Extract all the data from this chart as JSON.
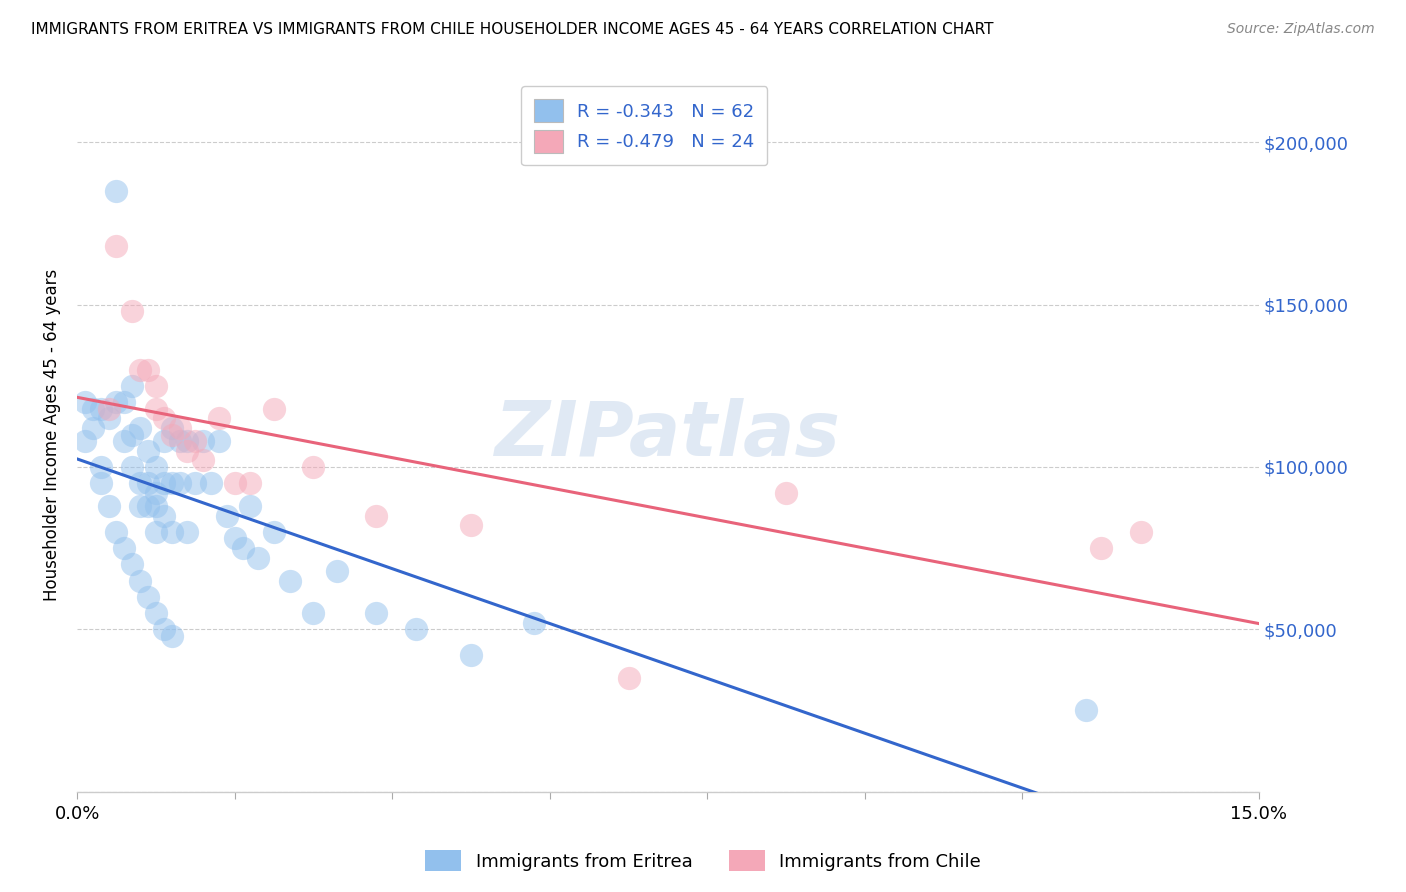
{
  "title": "IMMIGRANTS FROM ERITREA VS IMMIGRANTS FROM CHILE HOUSEHOLDER INCOME AGES 45 - 64 YEARS CORRELATION CHART",
  "source": "Source: ZipAtlas.com",
  "ylabel": "Householder Income Ages 45 - 64 years",
  "xmin": 0.0,
  "xmax": 0.15,
  "ymin": 0,
  "ymax": 220000,
  "yticks": [
    0,
    50000,
    100000,
    150000,
    200000
  ],
  "ytick_labels": [
    "",
    "$50,000",
    "$100,000",
    "$150,000",
    "$200,000"
  ],
  "legend_r1": "-0.343",
  "legend_n1": "62",
  "legend_r2": "-0.479",
  "legend_n2": "24",
  "legend_label1": "Immigrants from Eritrea",
  "legend_label2": "Immigrants from Chile",
  "watermark": "ZIPatlas",
  "color_eritrea": "#92C0ED",
  "color_chile": "#F4A8B8",
  "color_eritrea_line": "#3366CC",
  "color_chile_line": "#E8637A",
  "color_legend_text": "#3366CC",
  "eritrea_x": [
    0.001,
    0.002,
    0.003,
    0.004,
    0.005,
    0.005,
    0.006,
    0.006,
    0.007,
    0.007,
    0.007,
    0.008,
    0.008,
    0.008,
    0.009,
    0.009,
    0.009,
    0.01,
    0.01,
    0.01,
    0.01,
    0.011,
    0.011,
    0.011,
    0.012,
    0.012,
    0.012,
    0.013,
    0.013,
    0.014,
    0.014,
    0.015,
    0.016,
    0.017,
    0.018,
    0.019,
    0.02,
    0.021,
    0.022,
    0.023,
    0.025,
    0.027,
    0.03,
    0.033,
    0.038,
    0.043,
    0.05,
    0.058,
    0.001,
    0.002,
    0.003,
    0.003,
    0.004,
    0.005,
    0.006,
    0.007,
    0.008,
    0.009,
    0.01,
    0.011,
    0.012,
    0.128
  ],
  "eritrea_y": [
    108000,
    112000,
    118000,
    115000,
    185000,
    120000,
    120000,
    108000,
    125000,
    110000,
    100000,
    95000,
    112000,
    88000,
    105000,
    95000,
    88000,
    100000,
    92000,
    88000,
    80000,
    108000,
    95000,
    85000,
    112000,
    95000,
    80000,
    108000,
    95000,
    108000,
    80000,
    95000,
    108000,
    95000,
    108000,
    85000,
    78000,
    75000,
    88000,
    72000,
    80000,
    65000,
    55000,
    68000,
    55000,
    50000,
    42000,
    52000,
    120000,
    118000,
    100000,
    95000,
    88000,
    80000,
    75000,
    70000,
    65000,
    60000,
    55000,
    50000,
    48000,
    25000
  ],
  "chile_x": [
    0.004,
    0.005,
    0.007,
    0.008,
    0.009,
    0.01,
    0.01,
    0.011,
    0.012,
    0.013,
    0.014,
    0.015,
    0.016,
    0.018,
    0.02,
    0.022,
    0.025,
    0.03,
    0.038,
    0.05,
    0.07,
    0.09,
    0.13,
    0.135
  ],
  "chile_y": [
    118000,
    168000,
    148000,
    130000,
    130000,
    125000,
    118000,
    115000,
    110000,
    112000,
    105000,
    108000,
    102000,
    115000,
    95000,
    95000,
    118000,
    100000,
    85000,
    82000,
    35000,
    92000,
    75000,
    80000
  ]
}
